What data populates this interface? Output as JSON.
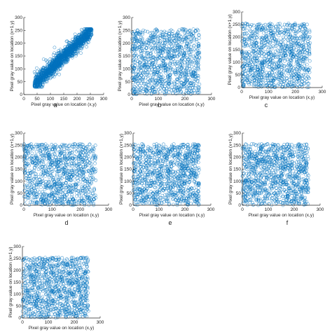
{
  "figure": {
    "marker_color": "#0072bd",
    "marker": "open-circle"
  },
  "chart_data": [
    {
      "type": "scatter",
      "panel": "a",
      "distribution": "correlated",
      "xlabel": "Pixel gray value on location (x,y)",
      "ylabel": "Pixel gray value on location (x+1,y)",
      "xlim": [
        0,
        300
      ],
      "ylim": [
        0,
        300
      ],
      "xticks": [
        "0",
        "50",
        "100",
        "150",
        "200",
        "250",
        "300"
      ],
      "yticks": [
        "0",
        "50",
        "100",
        "150",
        "200",
        "250",
        "300"
      ],
      "x_range": [
        40,
        255
      ],
      "y_range": [
        40,
        255
      ],
      "trend": [
        [
          40,
          40
        ],
        [
          255,
          250
        ]
      ],
      "spread": 14,
      "n_points": 1400,
      "grid": false
    },
    {
      "type": "scatter",
      "panel": "b",
      "distribution": "uniform",
      "xlabel": "Pixel gray value on location (x,y)",
      "ylabel": "Pixel gray value on location (x+1,y)",
      "xlim": [
        0,
        300
      ],
      "ylim": [
        0,
        300
      ],
      "xticks": [
        "0",
        "100",
        "200",
        "300"
      ],
      "yticks": [
        "0",
        "50",
        "100",
        "150",
        "200",
        "250",
        "300"
      ],
      "x_range": [
        0,
        255
      ],
      "y_range": [
        0,
        255
      ],
      "n_points": 1000,
      "grid": false
    },
    {
      "type": "scatter",
      "panel": "c",
      "distribution": "uniform",
      "xlabel": "Pixel gray value on location (x,y)",
      "ylabel": "Pixel gray value on location (x+1,y)",
      "xlim": [
        0,
        300
      ],
      "ylim": [
        0,
        300
      ],
      "xticks": [
        "0",
        "100",
        "200",
        "300"
      ],
      "yticks": [
        "0",
        "50",
        "100",
        "150",
        "200",
        "250",
        "300"
      ],
      "x_range": [
        0,
        255
      ],
      "y_range": [
        0,
        255
      ],
      "n_points": 1000,
      "grid": false
    },
    {
      "type": "scatter",
      "panel": "d",
      "distribution": "uniform",
      "xlabel": "Pixel gray value on location (x,y)",
      "ylabel": "Pixel gray value on location (x+1,y)",
      "xlim": [
        0,
        300
      ],
      "ylim": [
        0,
        300
      ],
      "xticks": [
        "0",
        "100",
        "200",
        "300"
      ],
      "yticks": [
        "0",
        "50",
        "100",
        "150",
        "200",
        "250",
        "300"
      ],
      "x_range": [
        0,
        255
      ],
      "y_range": [
        0,
        255
      ],
      "n_points": 1000,
      "grid": false
    },
    {
      "type": "scatter",
      "panel": "e",
      "distribution": "uniform",
      "xlabel": "Pixel gray value on location (x,y)",
      "ylabel": "Pixel gray value on location (x+1,y)",
      "xlim": [
        0,
        300
      ],
      "ylim": [
        0,
        300
      ],
      "xticks": [
        "0",
        "100",
        "200",
        "300"
      ],
      "yticks": [
        "0",
        "50",
        "100",
        "150",
        "200",
        "250",
        "300"
      ],
      "x_range": [
        0,
        255
      ],
      "y_range": [
        0,
        255
      ],
      "n_points": 1000,
      "grid": false
    },
    {
      "type": "scatter",
      "panel": "f",
      "distribution": "uniform",
      "xlabel": "Pixel gray value on location (x,y)",
      "ylabel": "Pixel gray value on location (x+1,y)",
      "xlim": [
        0,
        300
      ],
      "ylim": [
        0,
        300
      ],
      "xticks": [
        "0",
        "100",
        "200",
        "300"
      ],
      "yticks": [
        "0",
        "50",
        "100",
        "150",
        "200",
        "250",
        "300"
      ],
      "x_range": [
        0,
        255
      ],
      "y_range": [
        0,
        255
      ],
      "n_points": 1000,
      "grid": false
    },
    {
      "type": "scatter",
      "panel": "g",
      "distribution": "uniform",
      "xlabel": "Pixel gray value on location (x,y)",
      "ylabel": "Pixel gray value on location (x+1,y)",
      "xlim": [
        0,
        300
      ],
      "ylim": [
        0,
        300
      ],
      "xticks": [
        "0",
        "100",
        "200",
        "300"
      ],
      "yticks": [
        "0",
        "50",
        "100",
        "150",
        "200",
        "250",
        "300"
      ],
      "x_range": [
        0,
        255
      ],
      "y_range": [
        0,
        255
      ],
      "n_points": 1000,
      "grid": false
    }
  ]
}
